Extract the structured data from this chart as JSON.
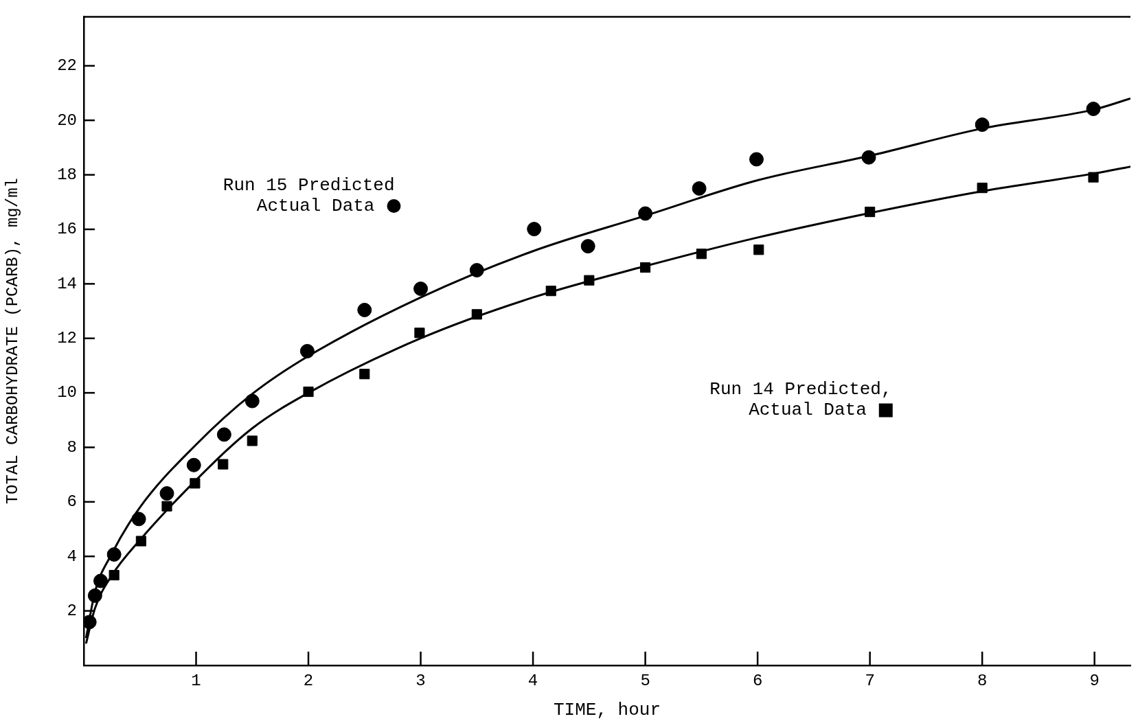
{
  "chart_data": {
    "type": "scatter",
    "xlabel": "TIME, hour",
    "ylabel": "TOTAL CARBOHYDRATE (PCARB), mg/ml",
    "xlim": [
      0,
      9.32
    ],
    "ylim": [
      0,
      23.8
    ],
    "xticks": [
      1,
      2,
      3,
      4,
      5,
      6,
      7,
      8,
      9
    ],
    "yticks": [
      2,
      4,
      6,
      8,
      10,
      12,
      14,
      16,
      18,
      20,
      22
    ],
    "grid": false,
    "annotations": [
      "Run 15 Predicted",
      "Run 14 Predicted,"
    ],
    "series": [
      {
        "type": "line",
        "marker": "none",
        "color": "#000000",
        "x": [
          0.02,
          0.1,
          0.25,
          0.5,
          1,
          1.5,
          2,
          3,
          4,
          5,
          6,
          7,
          8,
          9,
          9.32
        ],
        "values": [
          1.0,
          2.7,
          4.1,
          5.8,
          8.1,
          9.96,
          11.35,
          13.5,
          15.2,
          16.5,
          17.8,
          18.7,
          19.7,
          20.4,
          20.8
        ]
      },
      {
        "name": "Actual Data",
        "marker": "circle",
        "color": "#000000",
        "x": [
          0.05,
          0.1,
          0.15,
          0.27,
          0.49,
          0.74,
          0.98,
          1.25,
          1.5,
          1.99,
          2.5,
          3,
          3.5,
          4.01,
          4.49,
          5,
          5.48,
          5.99,
          6.99,
          8,
          8.99
        ],
        "values": [
          1.59,
          2.56,
          3.1,
          4.07,
          5.37,
          6.31,
          7.35,
          8.47,
          9.7,
          11.53,
          13.04,
          13.82,
          14.5,
          16.01,
          15.38,
          16.58,
          17.5,
          18.57,
          18.64,
          19.84,
          20.42
        ]
      },
      {
        "type": "line",
        "marker": "none",
        "color": "#000000",
        "x": [
          0.02,
          0.1,
          0.25,
          0.5,
          1,
          1.5,
          2,
          3,
          4,
          5,
          6,
          7,
          8,
          9,
          9.32
        ],
        "values": [
          0.8,
          2.1,
          3.3,
          4.6,
          6.8,
          8.7,
          10.0,
          12.0,
          13.5,
          14.65,
          15.7,
          16.6,
          17.4,
          18.05,
          18.3
        ]
      },
      {
        "name": "Actual Data",
        "marker": "square",
        "color": "#000000",
        "x": [
          0.27,
          0.51,
          0.74,
          0.99,
          1.24,
          1.5,
          2,
          2.5,
          2.99,
          3.5,
          4.16,
          4.5,
          5,
          5.5,
          6.01,
          7,
          8,
          8.99
        ],
        "values": [
          3.31,
          4.56,
          5.84,
          6.68,
          7.38,
          8.24,
          10.04,
          10.69,
          12.2,
          12.88,
          13.74,
          14.13,
          14.6,
          15.1,
          15.25,
          16.64,
          17.52,
          17.91
        ]
      }
    ]
  }
}
